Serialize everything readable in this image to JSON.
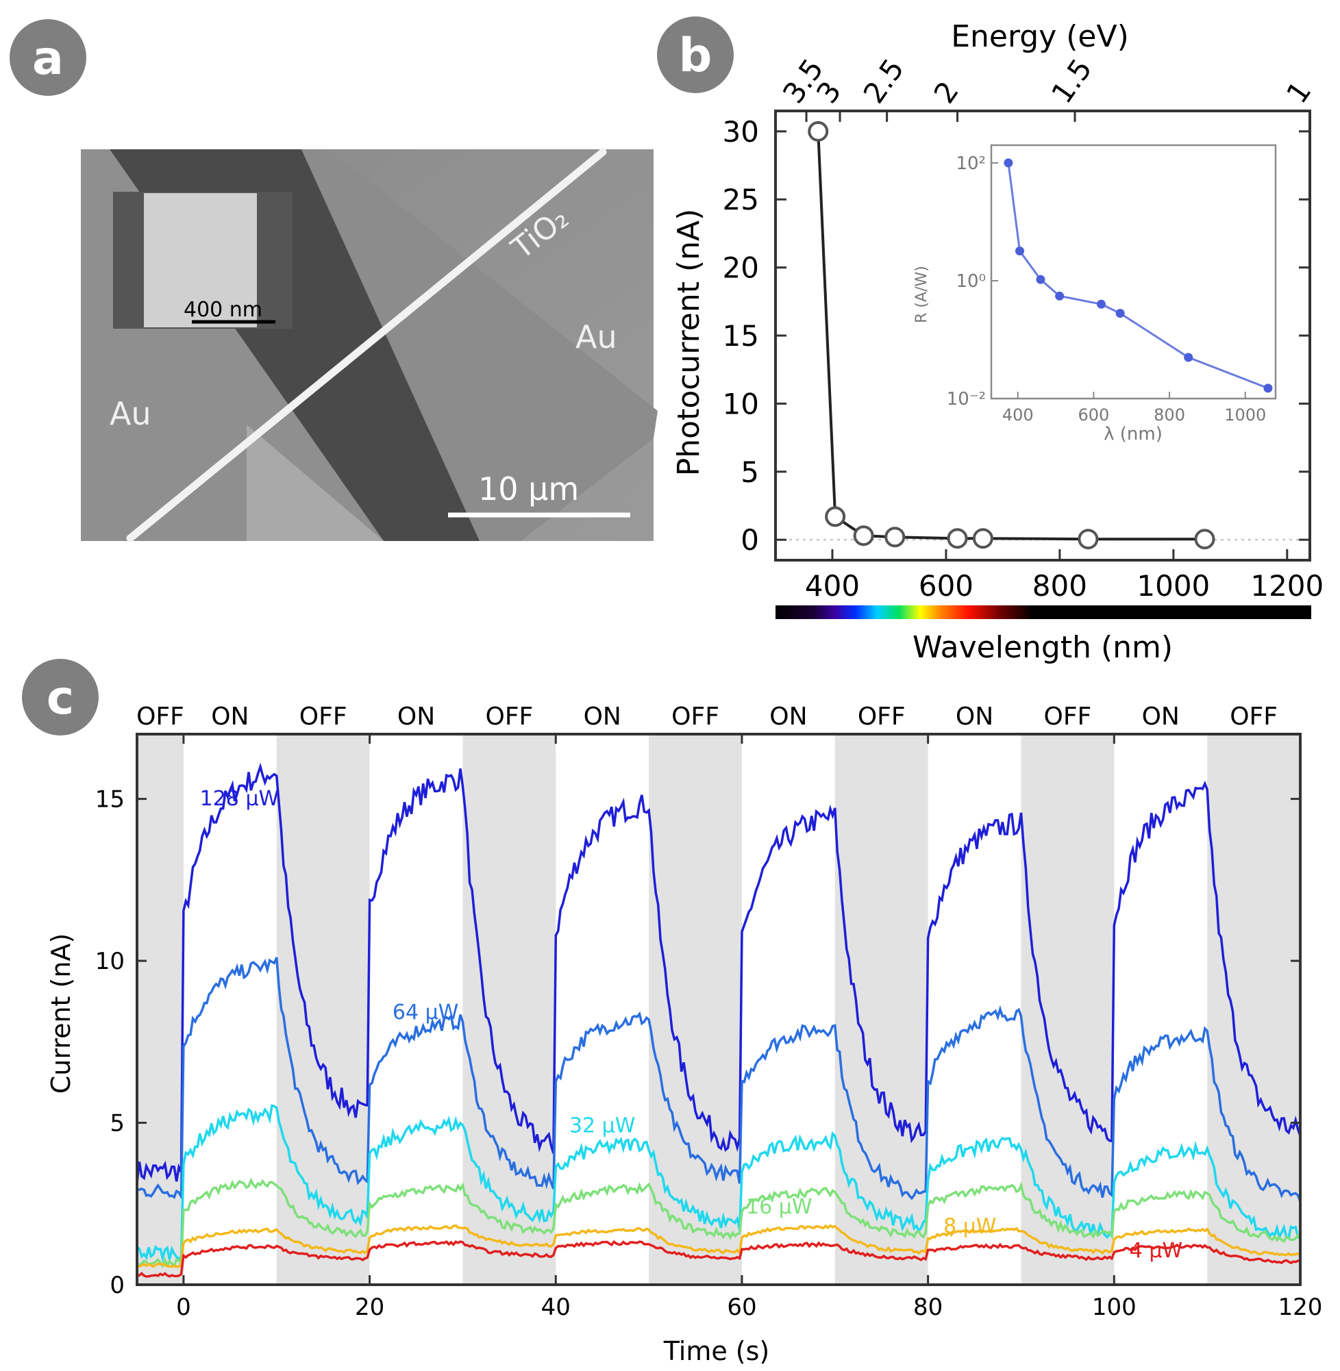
{
  "panels": {
    "a": {
      "label": "a",
      "texts": {
        "tio2": "TiO₂",
        "au_left": "Au",
        "au_right": "Au",
        "scale_main": "10 µm",
        "scale_inset": "400 nm"
      }
    },
    "b": {
      "label": "b",
      "xlabel": "Wavelength (nm)",
      "ylabel": "Photocurrent (nA)",
      "top_xlabel": "Energy (eV)"
    },
    "c": {
      "label": "c",
      "xlabel": "Time (s)",
      "ylabel": "Current (nA)"
    }
  },
  "colors": {
    "panel_label_bg": "#7f7f7f",
    "off_band": "#e2e2e2",
    "series_128": "#1f1fd8",
    "series_64": "#2a6fe0",
    "series_32": "#1fd8ee",
    "series_16": "#7ee07a",
    "series_8": "#f4b81c",
    "series_4": "#e02020",
    "inset_line": "#6a7ce0"
  },
  "chart_data": [
    {
      "id": "b",
      "type": "line",
      "title": "",
      "xlabel": "Wavelength (nm)",
      "ylabel": "Photocurrent (nA)",
      "xlim": [
        300,
        1240
      ],
      "ylim": [
        -1.5,
        31.5
      ],
      "xticks": [
        400,
        600,
        800,
        1000,
        1200
      ],
      "yticks": [
        0,
        5,
        10,
        15,
        20,
        25,
        30
      ],
      "top_axis": {
        "label": "Energy (eV)",
        "ticks": [
          "3.5",
          "3",
          "2.5",
          "2",
          "1.5",
          "1"
        ],
        "energies": [
          3.5,
          3,
          2.5,
          2,
          1.5,
          1
        ]
      },
      "series": [
        {
          "name": "Photocurrent",
          "x": [
            375,
            405,
            455,
            510,
            620,
            665,
            850,
            1055
          ],
          "y": [
            30,
            1.7,
            0.3,
            0.2,
            0.1,
            0.1,
            0.05,
            0.05
          ]
        }
      ],
      "colorbar": "visible spectrum",
      "inset": {
        "type": "line",
        "xlabel": "λ (nm)",
        "ylabel": "R (A/W)",
        "xlim": [
          330,
          1080
        ],
        "yscale": "log",
        "ylim": [
          0.01,
          200
        ],
        "xticks": [
          400,
          600,
          800,
          1000
        ],
        "yticks": [
          "10²",
          "10⁰",
          "10⁻²"
        ],
        "x": [
          375,
          405,
          460,
          510,
          620,
          670,
          850,
          1060
        ],
        "y": [
          100,
          3.2,
          1.05,
          0.55,
          0.4,
          0.28,
          0.05,
          0.015
        ]
      }
    },
    {
      "id": "c",
      "type": "line",
      "title": "",
      "xlabel": "Time (s)",
      "ylabel": "Current (nA)",
      "xlim": [
        -5,
        120
      ],
      "ylim": [
        0,
        17
      ],
      "xticks": [
        0,
        20,
        40,
        60,
        80,
        100,
        120
      ],
      "yticks": [
        0,
        5,
        10,
        15
      ],
      "states": [
        "OFF",
        "ON",
        "OFF",
        "ON",
        "OFF",
        "ON",
        "OFF",
        "ON",
        "OFF",
        "ON",
        "OFF",
        "ON",
        "OFF"
      ],
      "off_intervals": [
        [
          -5,
          0
        ],
        [
          10,
          20
        ],
        [
          30,
          40
        ],
        [
          50,
          60
        ],
        [
          70,
          80
        ],
        [
          90,
          100
        ],
        [
          110,
          120
        ]
      ],
      "series": [
        {
          "name": "128 µW",
          "label": "128 µW",
          "label_at": [
            6,
            14.8
          ],
          "color_key": "series_128",
          "base": [
            3.5,
            5.0,
            4.0,
            4.0,
            4.3,
            4.5,
            4.5
          ],
          "peak": [
            16.0,
            15.8,
            15.0,
            14.6,
            14.4,
            15.3
          ]
        },
        {
          "name": "64 µW",
          "label": "64 µW",
          "label_at": [
            26,
            8.2
          ],
          "color_key": "series_64",
          "base": [
            2.9,
            3.1,
            3.0,
            3.2,
            2.6,
            2.7,
            2.6
          ],
          "peak": [
            10.0,
            8.2,
            8.3,
            8.0,
            8.5,
            7.8
          ]
        },
        {
          "name": "32 µW",
          "label": "32 µW",
          "label_at": [
            45,
            4.7
          ],
          "color_key": "series_32",
          "base": [
            1.0,
            2.0,
            2.0,
            1.8,
            1.8,
            1.6,
            1.5
          ],
          "peak": [
            5.4,
            5.0,
            4.4,
            4.5,
            4.4,
            4.2
          ]
        },
        {
          "name": "16 µW",
          "label": "16 µW",
          "label_at": [
            64,
            2.2
          ],
          "color_key": "series_16",
          "base": [
            0.7,
            1.5,
            1.6,
            1.5,
            1.5,
            1.5,
            1.4
          ],
          "peak": [
            3.2,
            3.0,
            3.0,
            2.9,
            3.0,
            2.8
          ]
        },
        {
          "name": "8 µW",
          "label": "8 µW",
          "label_at": [
            84.5,
            1.6
          ],
          "color_key": "series_8",
          "base": [
            0.6,
            1.0,
            1.2,
            1.0,
            1.0,
            1.0,
            0.9
          ],
          "peak": [
            1.7,
            1.8,
            1.7,
            1.8,
            1.7,
            1.7
          ]
        },
        {
          "name": "4 µW",
          "label": "4 µW",
          "label_at": [
            104.5,
            0.85
          ],
          "color_key": "series_4",
          "base": [
            0.3,
            0.8,
            0.9,
            0.8,
            0.8,
            0.8,
            0.7
          ],
          "peak": [
            1.2,
            1.3,
            1.3,
            1.25,
            1.2,
            1.2
          ]
        }
      ]
    }
  ]
}
